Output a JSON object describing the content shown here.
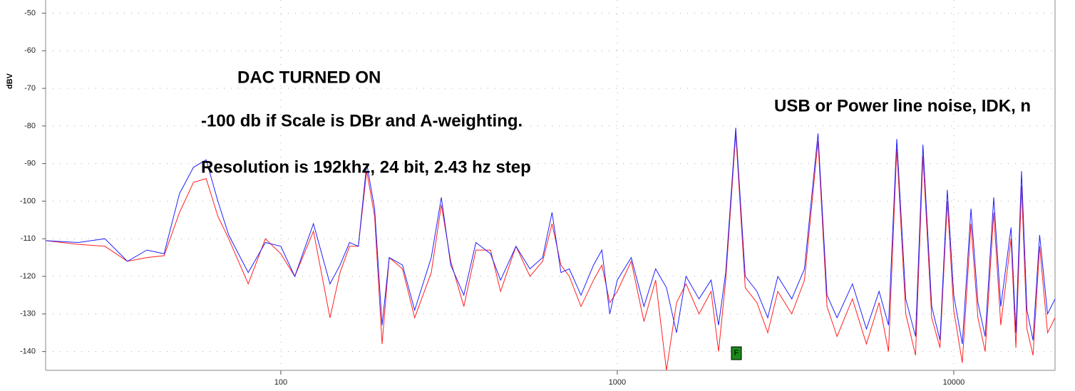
{
  "chart_data": {
    "type": "line",
    "xscale": "log",
    "grid": true,
    "y_label": "dBV",
    "annotations": [
      "DAC TURNED ON",
      "-100 db if Scale is DBr and A-weighting.",
      "Resolution is 192khz, 24 bit, 2.43 hz step",
      "USB or Power line noise, IDK, n"
    ],
    "marker_label": "F",
    "xlim": [
      20,
      20000
    ],
    "xticks": [
      100,
      1000,
      10000
    ],
    "ylim": [
      -145,
      -46.5
    ],
    "yticks": [
      -50,
      -60,
      -70,
      -80,
      -90,
      -100,
      -110,
      -120,
      -130,
      -140
    ],
    "x": [
      20,
      25,
      30,
      35,
      40,
      45,
      50,
      55,
      60,
      65,
      70,
      80,
      90,
      100,
      110,
      125,
      140,
      150,
      160,
      170,
      180,
      190,
      200,
      210,
      230,
      250,
      280,
      300,
      320,
      350,
      380,
      420,
      450,
      500,
      550,
      600,
      640,
      680,
      720,
      780,
      850,
      900,
      950,
      1000,
      1100,
      1200,
      1300,
      1400,
      1500,
      1600,
      1750,
      1900,
      2000,
      2100,
      2250,
      2400,
      2600,
      2800,
      3000,
      3300,
      3600,
      3950,
      4200,
      4500,
      5000,
      5500,
      6000,
      6400,
      6770,
      7200,
      7700,
      8100,
      8600,
      9100,
      9570,
      10000,
      10600,
      11250,
      11800,
      12400,
      13150,
      13800,
      14800,
      15300,
      15900,
      16500,
      17200,
      18000,
      19000,
      20000
    ],
    "series": [
      {
        "color": "#ff2020",
        "values": [
          -110.5,
          -111.5,
          -112,
          -116,
          -115,
          -114.5,
          -103,
          -95,
          -94,
          -104,
          -110,
          -122,
          -110,
          -114,
          -120,
          -108,
          -131,
          -119,
          -112,
          -112,
          -92,
          -104,
          -138,
          -115,
          -118,
          -131,
          -119,
          -101,
          -116,
          -128,
          -113,
          -113,
          -124,
          -112,
          -120,
          -116,
          -106,
          -117,
          -120,
          -128,
          -121,
          -117,
          -127,
          -124,
          -116,
          -132,
          -121,
          -145,
          -127,
          -122,
          -130,
          -124,
          -140,
          -121,
          -82,
          -123,
          -127,
          -135,
          -124,
          -130,
          -121,
          -84,
          -128,
          -136,
          -126,
          -138,
          -127,
          -140,
          -86,
          -130,
          -141,
          -88,
          -131,
          -139,
          -100,
          -129,
          -143,
          -106,
          -131,
          -140,
          -103,
          -133,
          -110,
          -139,
          -96,
          -134,
          -141,
          -112,
          -135,
          -131
        ]
      },
      {
        "color": "#2020ff",
        "values": [
          -110.5,
          -111,
          -110,
          -116,
          -113,
          -114,
          -98,
          -91,
          -89,
          -100,
          -109,
          -119,
          -111,
          -112,
          -120,
          -106,
          -122,
          -117,
          -111,
          -112,
          -90,
          -102,
          -133,
          -115,
          -117,
          -129,
          -115,
          -99,
          -117,
          -125,
          -111,
          -114,
          -121,
          -112,
          -118,
          -115,
          -103,
          -119,
          -118,
          -125,
          -117,
          -113,
          -130,
          -121,
          -115,
          -128,
          -118,
          -123,
          -135,
          -120,
          -126,
          -121,
          -133,
          -119,
          -80.5,
          -120,
          -124,
          -131,
          -120,
          -126,
          -118,
          -82,
          -125,
          -131,
          -122,
          -134,
          -124,
          -133,
          -83.5,
          -126,
          -136,
          -85,
          -128,
          -137,
          -97,
          -125,
          -138,
          -102,
          -127,
          -136,
          -99,
          -128,
          -107,
          -135,
          -92,
          -129,
          -137,
          -109,
          -130,
          -126
        ]
      }
    ]
  }
}
